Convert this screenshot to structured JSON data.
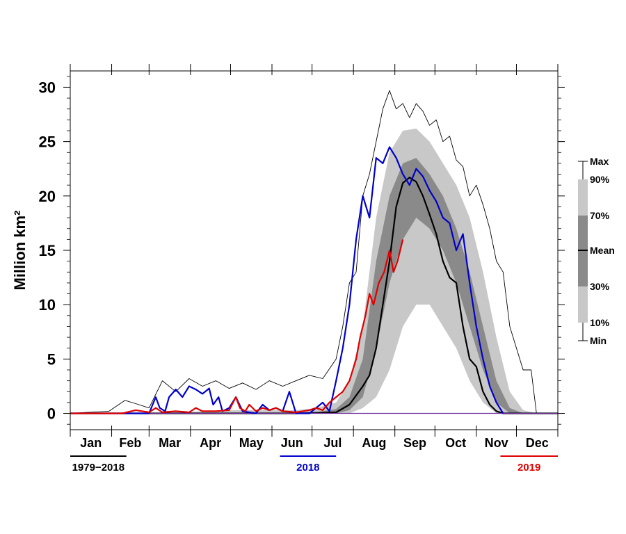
{
  "chart_data": {
    "type": "area",
    "title": "",
    "ylabel": "Million km²",
    "ylim": [
      -1.5,
      31.5
    ],
    "yticks": [
      0,
      5,
      10,
      15,
      20,
      25,
      30
    ],
    "months": [
      "Jan",
      "Feb",
      "Mar",
      "Apr",
      "May",
      "Jun",
      "Jul",
      "Aug",
      "Sep",
      "Oct",
      "Nov",
      "Dec"
    ],
    "xlim_doy": [
      1,
      366
    ],
    "month_start_doy": [
      1,
      32,
      60,
      91,
      121,
      152,
      182,
      213,
      244,
      274,
      305,
      335,
      366
    ],
    "legend_scale": {
      "labels": [
        "Max",
        "90%",
        "70%",
        "Mean",
        "30%",
        "10%",
        "Min"
      ],
      "position": "right"
    },
    "period_labels": [
      {
        "text": "1979−2018",
        "color": "#000000",
        "x_from_doy": 1,
        "x_to_doy": 43
      },
      {
        "text": "2018",
        "color": "#0000cc",
        "x_from_doy": 158,
        "x_to_doy": 200
      },
      {
        "text": "2019",
        "color": "#dd0000",
        "x_from_doy": 323,
        "x_to_doy": 366
      }
    ],
    "bands": {
      "doy": [
        1,
        60,
        120,
        170,
        185,
        200,
        210,
        220,
        230,
        240,
        250,
        260,
        270,
        280,
        290,
        300,
        310,
        320,
        330,
        340,
        350,
        366
      ],
      "p10": [
        0,
        0,
        0,
        0,
        0,
        0,
        0,
        0.5,
        1.5,
        4,
        8,
        10,
        10,
        8,
        6,
        3,
        1,
        0,
        0,
        0,
        0,
        0
      ],
      "p30": [
        0,
        0,
        0,
        0,
        0,
        0,
        0.3,
        1.5,
        6,
        12,
        16,
        18,
        17,
        15,
        12,
        8,
        4,
        1,
        0,
        0,
        0,
        0
      ],
      "p70": [
        0,
        0,
        0,
        0,
        0.1,
        0.4,
        1.5,
        5,
        14,
        20,
        23,
        23.5,
        22,
        20,
        17,
        13,
        8,
        3,
        0.5,
        0,
        0,
        0
      ],
      "p90": [
        0,
        0,
        0.3,
        0.3,
        0.5,
        1,
        3,
        8,
        18,
        24,
        26,
        26.2,
        25,
        23,
        21,
        18,
        13,
        7,
        2,
        0.3,
        0,
        0
      ]
    },
    "series": [
      {
        "name": "1979−2018",
        "role": "mean",
        "color": "#000000",
        "x": [
          1,
          60,
          170,
          200,
          210,
          220,
          225,
          230,
          235,
          240,
          245,
          250,
          255,
          260,
          265,
          270,
          275,
          280,
          285,
          290,
          295,
          300,
          305,
          310,
          315,
          320,
          325,
          330,
          340,
          366
        ],
        "y": [
          0,
          0,
          0,
          0.1,
          0.8,
          2.5,
          3.5,
          6,
          10,
          14,
          19,
          21.2,
          21.7,
          21.3,
          20,
          18.3,
          16.5,
          14,
          12.5,
          12,
          8,
          5,
          4.3,
          2,
          0.8,
          0.2,
          0,
          0,
          0,
          0
        ]
      },
      {
        "name": "1979−2018",
        "role": "max",
        "color": "#000000",
        "x": [
          1,
          30,
          42,
          50,
          60,
          70,
          80,
          90,
          100,
          110,
          120,
          130,
          140,
          150,
          160,
          170,
          180,
          190,
          200,
          205,
          210,
          215,
          220,
          225,
          230,
          235,
          240,
          245,
          250,
          255,
          260,
          265,
          270,
          275,
          280,
          285,
          290,
          295,
          300,
          305,
          310,
          315,
          320,
          325,
          330,
          335,
          340,
          346,
          350,
          355
        ],
        "y": [
          0,
          0.2,
          1.2,
          0.9,
          0.5,
          3,
          2,
          3.2,
          2.5,
          3,
          2.3,
          2.8,
          2.2,
          3,
          2.5,
          3,
          3.5,
          3.2,
          5,
          8,
          12,
          13,
          20,
          22,
          25,
          28,
          29.7,
          28,
          28.5,
          27.2,
          28.5,
          27.8,
          26.5,
          27,
          25,
          25.5,
          23.3,
          22.7,
          20,
          21,
          19.2,
          17,
          14,
          13,
          8,
          6,
          4,
          4,
          0,
          0
        ]
      },
      {
        "name": "1979−2018",
        "role": "min",
        "color": "#7030a0",
        "x": [
          1,
          366
        ],
        "y": [
          0,
          0
        ]
      },
      {
        "name": "2018",
        "color": "#0000cc",
        "x": [
          1,
          60,
          65,
          68,
          72,
          75,
          80,
          85,
          90,
          95,
          100,
          105,
          108,
          112,
          115,
          120,
          125,
          130,
          140,
          145,
          150,
          155,
          160,
          165,
          170,
          180,
          190,
          195,
          200,
          205,
          210,
          215,
          220,
          225,
          230,
          235,
          240,
          245,
          250,
          255,
          260,
          265,
          270,
          275,
          280,
          285,
          290,
          295,
          300,
          305,
          310,
          315,
          320,
          325
        ],
        "y": [
          0,
          0,
          1.5,
          0.5,
          0.2,
          1.5,
          2.2,
          1.5,
          2.5,
          2.2,
          1.8,
          2.3,
          0.8,
          1.5,
          0.2,
          0.5,
          1.5,
          0.2,
          0,
          0.8,
          0.3,
          0.5,
          0.2,
          2,
          0,
          0,
          1,
          0.2,
          3,
          6,
          10,
          16,
          20,
          18,
          23.5,
          23,
          24.5,
          23.5,
          22,
          21,
          22.5,
          21.8,
          20.5,
          19.5,
          18,
          17.5,
          15,
          16.5,
          12,
          8,
          5,
          2.5,
          1,
          0
        ]
      },
      {
        "name": "2019",
        "color": "#dd0000",
        "x": [
          1,
          40,
          50,
          60,
          65,
          70,
          80,
          90,
          95,
          100,
          110,
          120,
          125,
          128,
          132,
          135,
          140,
          145,
          150,
          155,
          160,
          170,
          180,
          185,
          190,
          195,
          200,
          205,
          210,
          215,
          218,
          222,
          225,
          228,
          232,
          236,
          240,
          243,
          246,
          250
        ],
        "y": [
          0,
          0,
          0.3,
          0.1,
          0.5,
          0.1,
          0.2,
          0.1,
          0.5,
          0.2,
          0.2,
          0.3,
          1.5,
          0.5,
          0.2,
          0.8,
          0.2,
          0.5,
          0.3,
          0.5,
          0.2,
          0.1,
          0.3,
          0.5,
          0.3,
          1,
          1.5,
          2,
          3,
          5,
          7,
          9,
          11,
          10,
          12,
          13,
          15,
          13,
          14,
          16
        ]
      }
    ]
  }
}
